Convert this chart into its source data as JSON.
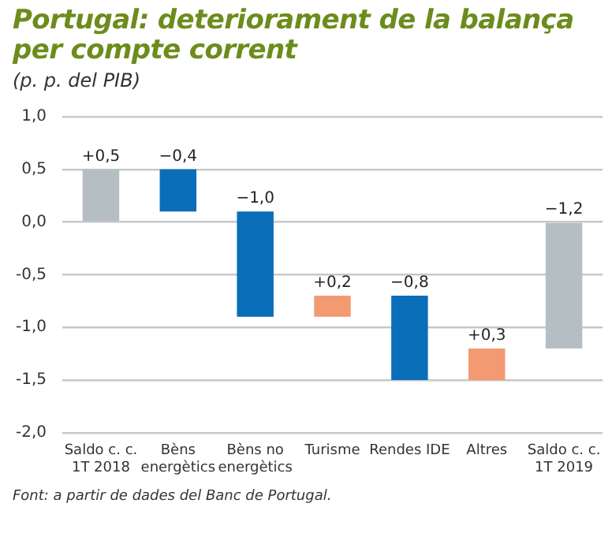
{
  "chart_data": {
    "type": "bar",
    "title": "Portugal: deteriorament de la balança per compte corrent",
    "subtitle": "(p. p. del PIB)",
    "categories": [
      "Saldo c. c. 1T 2018",
      "Bèns energètics",
      "Bèns no energètics",
      "Turisme",
      "Rendes IDE",
      "Altres",
      "Saldo c. c. 1T 2019"
    ],
    "values": [
      0.5,
      -0.4,
      -1.0,
      0.2,
      -0.8,
      0.3,
      -1.2
    ],
    "base": [
      0,
      0.5,
      0.1,
      -0.9,
      -0.7,
      -1.5,
      0
    ],
    "colors": [
      "#b4bec3",
      "#0a6eb9",
      "#0a6eb9",
      "#f39a72",
      "#0a6eb9",
      "#f39a72",
      "#b4bec3"
    ],
    "value_labels": [
      "+0,5",
      "−0,4",
      "−1,0",
      "+0,2",
      "−0,8",
      "+0,3",
      "−1,2"
    ],
    "ylim": [
      -2.0,
      1.0
    ],
    "yticks": [
      {
        "value": 1.0,
        "label": "1,0"
      },
      {
        "value": 0.5,
        "label": "0,5"
      },
      {
        "value": 0.0,
        "label": "0,0"
      },
      {
        "value": -0.5,
        "label": "-0,5"
      },
      {
        "value": -1.0,
        "label": "-1,0"
      },
      {
        "value": -1.5,
        "label": "-1,5"
      },
      {
        "value": -2.0,
        "label": "-2,0"
      }
    ],
    "grid": "y",
    "legend": false,
    "annotations": [
      "Font: a partir de dades del Banc de Portugal."
    ]
  }
}
